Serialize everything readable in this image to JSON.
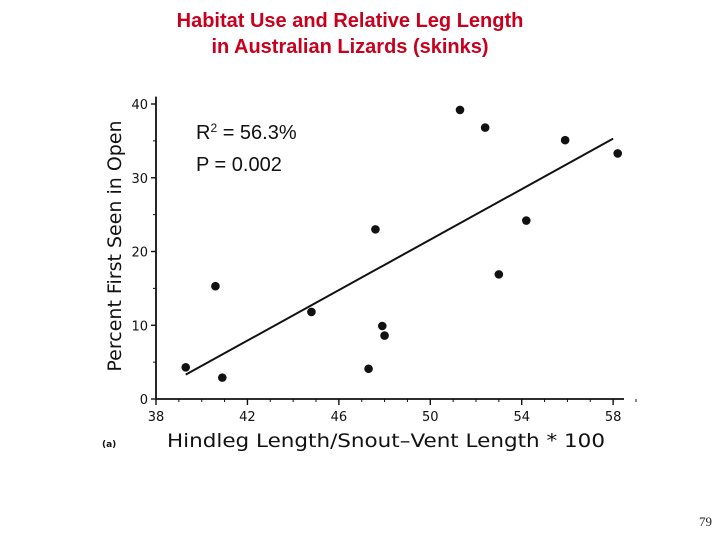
{
  "slide": {
    "title_line1": "Habitat Use and Relative Leg Length",
    "title_line2": "in Australian Lizards (skinks)",
    "page_number": "79",
    "title_color": "#c8001e"
  },
  "stats": {
    "r2_prefix": "R",
    "r2_sup": "2",
    "r2_value": " = 56.3%",
    "p_value": "P = 0.002"
  },
  "chart_data": {
    "type": "scatter",
    "panel_label": "(a)",
    "xlabel": "Hindleg Length/Snout–Vent Length * 100",
    "ylabel": "Percent First Seen in Open",
    "xlim": [
      38,
      59
    ],
    "ylim": [
      0,
      41
    ],
    "x_ticks": [
      38,
      42,
      46,
      50,
      54,
      58
    ],
    "y_ticks": [
      0,
      10,
      20,
      30,
      40
    ],
    "grid": false,
    "points": [
      {
        "x": 39.3,
        "y": 4.3
      },
      {
        "x": 40.6,
        "y": 15.3
      },
      {
        "x": 40.9,
        "y": 2.9
      },
      {
        "x": 44.8,
        "y": 11.8
      },
      {
        "x": 47.3,
        "y": 4.1
      },
      {
        "x": 47.6,
        "y": 23.0
      },
      {
        "x": 47.9,
        "y": 9.9
      },
      {
        "x": 48.0,
        "y": 8.6
      },
      {
        "x": 51.3,
        "y": 39.2
      },
      {
        "x": 52.4,
        "y": 36.8
      },
      {
        "x": 53.0,
        "y": 16.9
      },
      {
        "x": 54.2,
        "y": 24.2
      },
      {
        "x": 55.9,
        "y": 35.1
      },
      {
        "x": 58.2,
        "y": 33.3
      }
    ],
    "regression_line": {
      "x": [
        39.3,
        58.0
      ],
      "y": [
        3.3,
        35.3
      ]
    }
  }
}
